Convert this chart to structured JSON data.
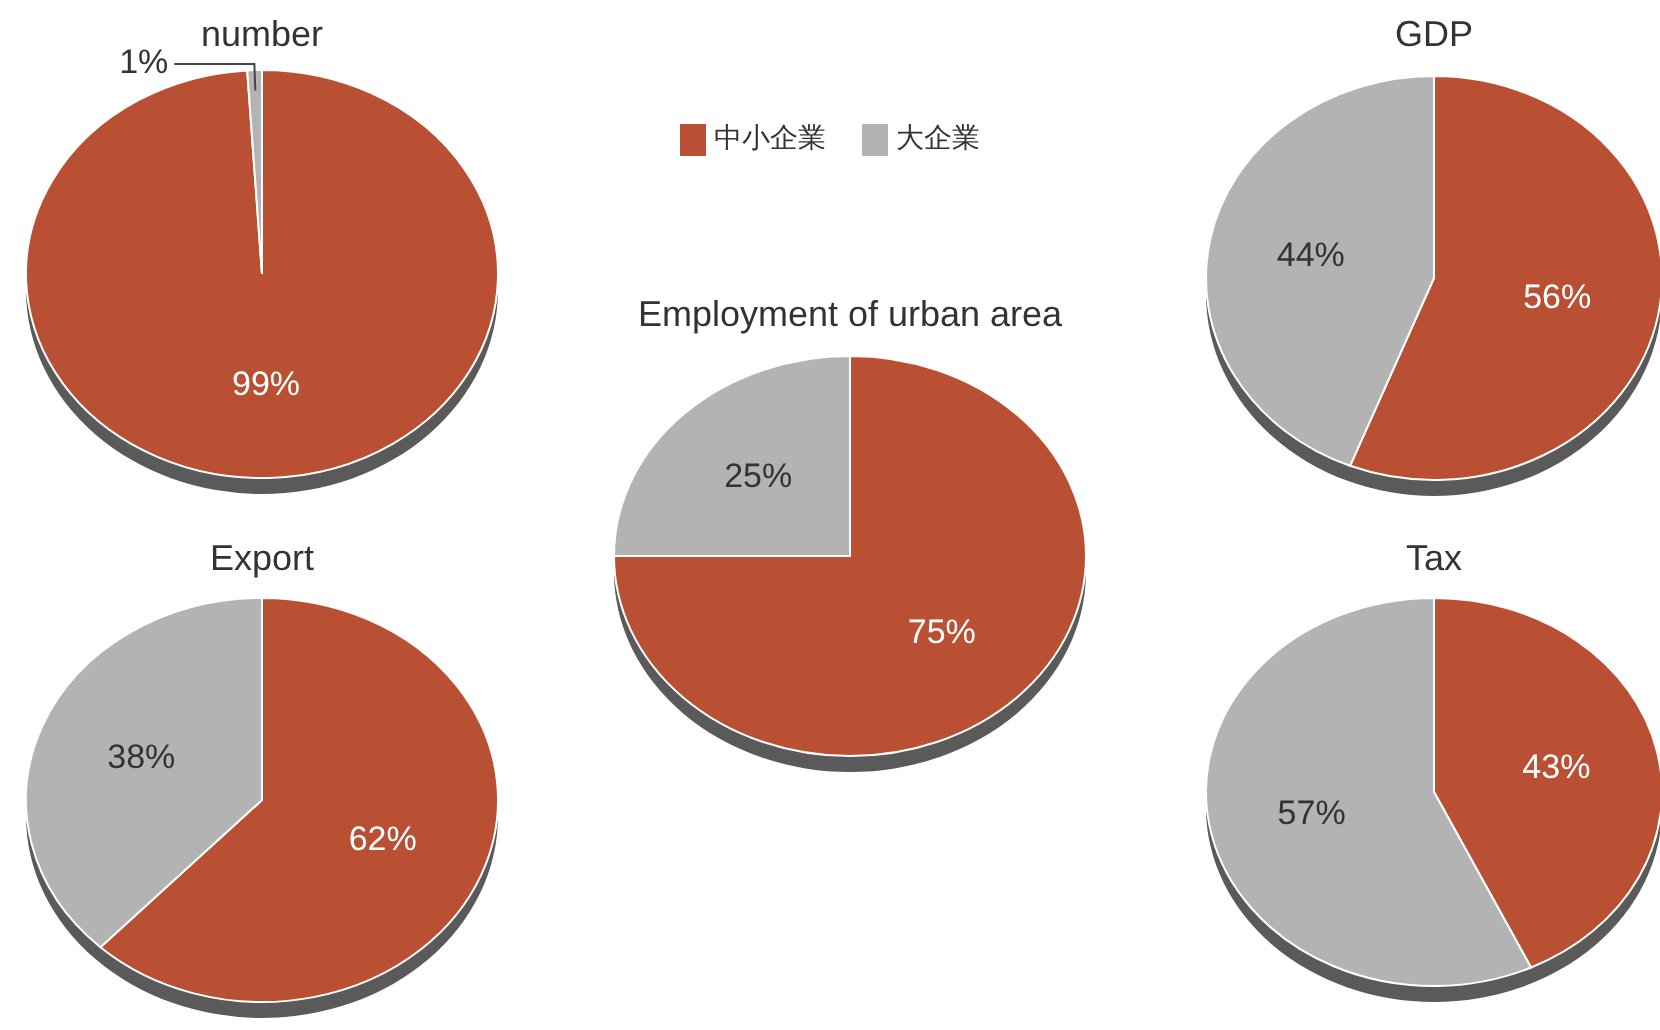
{
  "chart_data": [
    {
      "type": "pie",
      "title": "number",
      "categories": [
        null,
        null
      ],
      "values": [
        99,
        1
      ],
      "colors": [
        "#b94f33",
        "#b3b3b3"
      ],
      "value_labels": [
        "99%",
        "1%"
      ]
    },
    {
      "type": "pie",
      "title": "GDP",
      "categories": [
        null,
        null
      ],
      "values": [
        56,
        44
      ],
      "colors": [
        "#b94f33",
        "#b3b3b3"
      ],
      "value_labels": [
        "56%",
        "44%"
      ]
    },
    {
      "type": "pie",
      "title": "Employment of urban area",
      "categories": [
        "中小企業",
        "大企業"
      ],
      "values": [
        75,
        25
      ],
      "colors": [
        "#b94f33",
        "#b3b3b3"
      ],
      "value_labels": [
        "75%",
        "25%"
      ],
      "legend": "top"
    },
    {
      "type": "pie",
      "title": "Export",
      "categories": [
        null,
        null
      ],
      "values": [
        62,
        38
      ],
      "colors": [
        "#b94f33",
        "#b3b3b3"
      ],
      "value_labels": [
        "62%",
        "38%"
      ]
    },
    {
      "type": "pie",
      "title": "Tax",
      "categories": [
        null,
        null
      ],
      "values": [
        43,
        57
      ],
      "colors": [
        "#b94f33",
        "#b3b3b3"
      ],
      "value_labels": [
        "43%",
        "57%"
      ]
    }
  ]
}
